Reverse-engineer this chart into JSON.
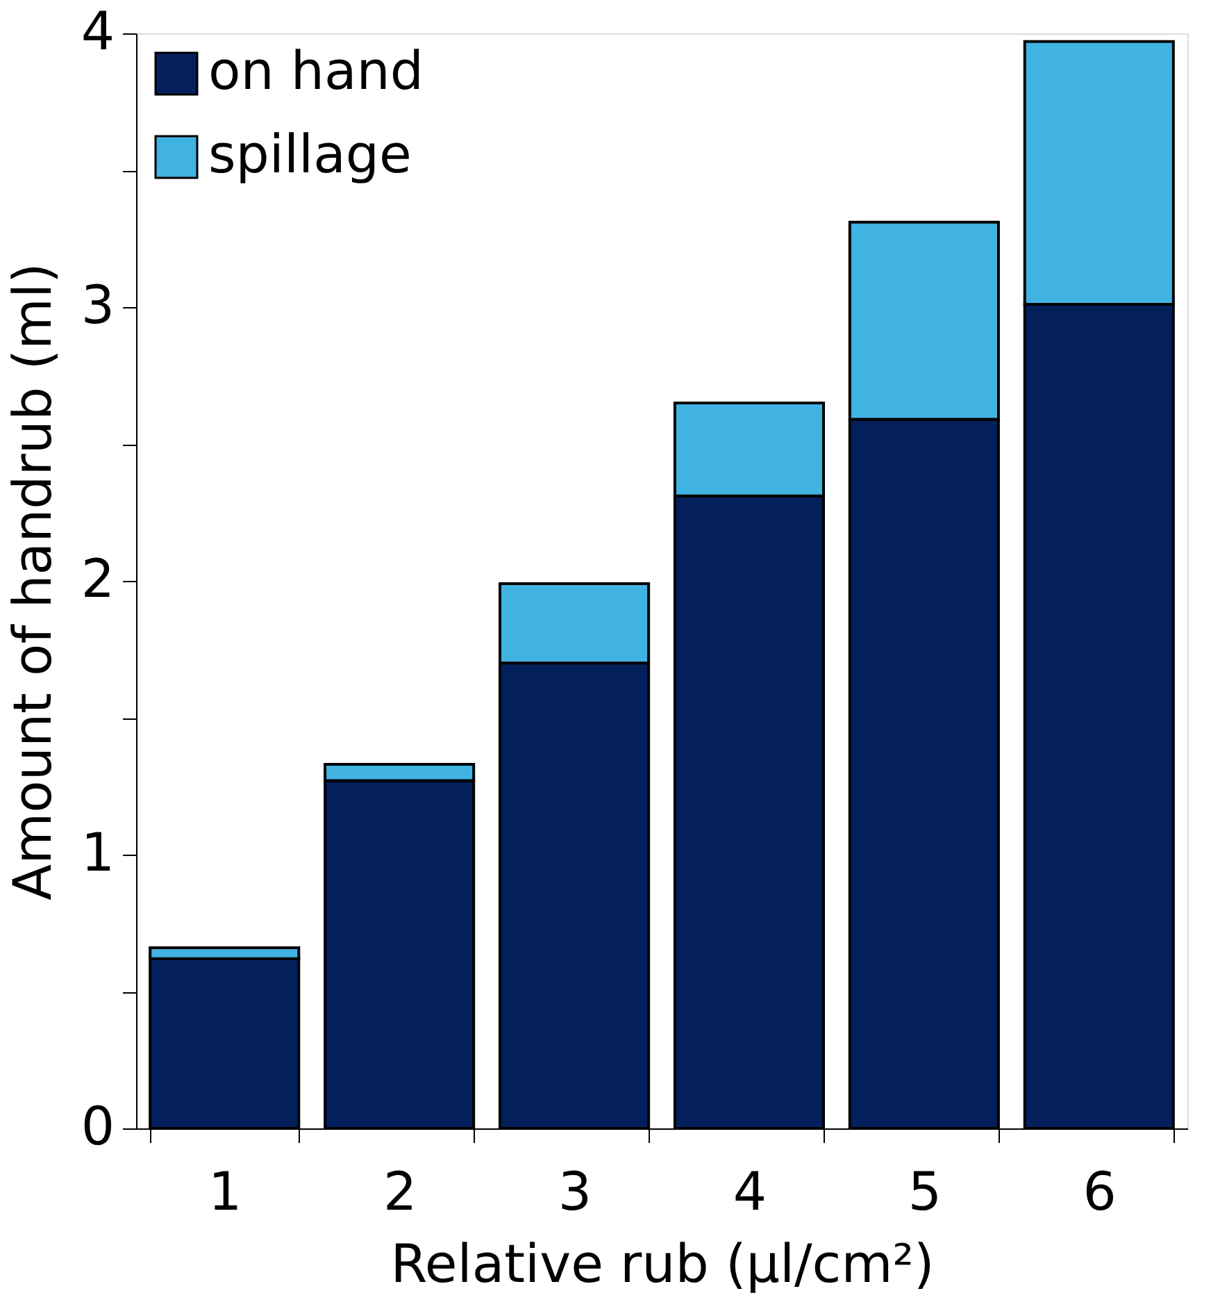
{
  "chart_data": {
    "type": "bar",
    "stacked": true,
    "xlabel": "Relative rub (µl/cm²)",
    "ylabel": "Amount of handrub (ml)",
    "categories": [
      "1",
      "2",
      "3",
      "4",
      "5",
      "6"
    ],
    "series": [
      {
        "name": "on hand",
        "color": "#04205c",
        "values": [
          0.62,
          1.27,
          1.7,
          2.31,
          2.59,
          3.01
        ]
      },
      {
        "name": "spillage",
        "color": "#41b3e3",
        "values": [
          0.04,
          0.06,
          0.29,
          0.34,
          0.72,
          0.96
        ]
      }
    ],
    "ylim": [
      0,
      4
    ],
    "yticks": [
      0,
      {
        "value": 0.5,
        "label": null
      },
      1,
      {
        "value": 1.5,
        "label": null
      },
      2,
      {
        "value": 2.5,
        "label": null
      },
      3,
      {
        "value": 3.5,
        "label": null
      },
      4
    ],
    "legend": "top left",
    "grid": false
  }
}
